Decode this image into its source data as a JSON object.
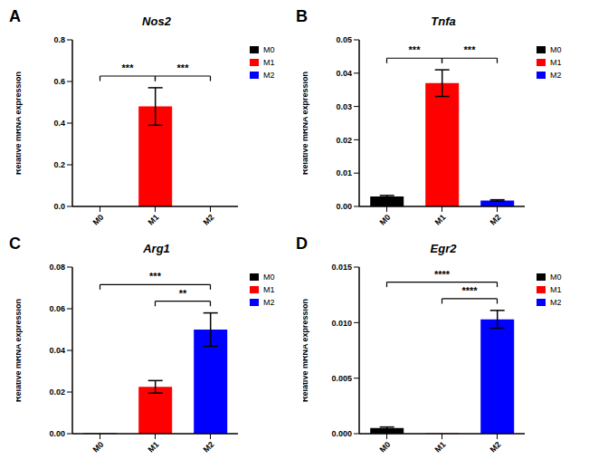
{
  "chart_data": [
    {
      "type": "bar",
      "panel": "A",
      "title": "Nos2",
      "categories": [
        "M0",
        "M1",
        "M2"
      ],
      "values": [
        0,
        0.48,
        0
      ],
      "errors": [
        0,
        0.09,
        0
      ],
      "colors": [
        "#000000",
        "#ff0000",
        "#0000ff"
      ],
      "ylabel": "Relative mRNA expression",
      "ylim": [
        0,
        0.8
      ],
      "yticks": [
        {
          "value": 0,
          "label": "0.0"
        },
        {
          "value": 0.2,
          "label": "0.2"
        },
        {
          "value": 0.4,
          "label": "0.4"
        },
        {
          "value": 0.6,
          "label": "0.6"
        },
        {
          "value": 0.8,
          "label": "0.8"
        }
      ],
      "legend": "right",
      "annotations": [
        {
          "pair": [
            "M0",
            "M1"
          ],
          "label": "***"
        },
        {
          "pair": [
            "M1",
            "M2"
          ],
          "label": "***"
        }
      ]
    },
    {
      "type": "bar",
      "panel": "B",
      "title": "Tnfa",
      "categories": [
        "M0",
        "M1",
        "M2"
      ],
      "values": [
        0.003,
        0.037,
        0.0018
      ],
      "errors": [
        0.0003,
        0.004,
        0.0002
      ],
      "colors": [
        "#000000",
        "#ff0000",
        "#0000ff"
      ],
      "ylabel": "Relative mRNA expression",
      "ylim": [
        0,
        0.05
      ],
      "yticks": [
        {
          "value": 0,
          "label": "0.00"
        },
        {
          "value": 0.01,
          "label": "0.01"
        },
        {
          "value": 0.02,
          "label": "0.02"
        },
        {
          "value": 0.03,
          "label": "0.03"
        },
        {
          "value": 0.04,
          "label": "0.04"
        },
        {
          "value": 0.05,
          "label": "0.05"
        }
      ],
      "legend": "right",
      "annotations": [
        {
          "pair": [
            "M0",
            "M1"
          ],
          "label": "***"
        },
        {
          "pair": [
            "M1",
            "M2"
          ],
          "label": "***"
        }
      ]
    },
    {
      "type": "bar",
      "panel": "C",
      "title": "Arg1",
      "categories": [
        "M0",
        "M1",
        "M2"
      ],
      "values": [
        0.0002,
        0.0225,
        0.05
      ],
      "errors": [
        0,
        0.003,
        0.008
      ],
      "colors": [
        "#000000",
        "#ff0000",
        "#0000ff"
      ],
      "ylabel": "Relative mRNA expression",
      "ylim": [
        0,
        0.08
      ],
      "yticks": [
        {
          "value": 0,
          "label": "0.00"
        },
        {
          "value": 0.02,
          "label": "0.02"
        },
        {
          "value": 0.04,
          "label": "0.04"
        },
        {
          "value": 0.06,
          "label": "0.06"
        },
        {
          "value": 0.08,
          "label": "0.08"
        }
      ],
      "legend": "right",
      "annotations": [
        {
          "pair": [
            "M1",
            "M2"
          ],
          "label": "**"
        },
        {
          "pair": [
            "M0",
            "M2"
          ],
          "label": "***"
        }
      ]
    },
    {
      "type": "bar",
      "panel": "D",
      "title": "Egr2",
      "categories": [
        "M0",
        "M1",
        "M2"
      ],
      "values": [
        0.0005,
        5e-05,
        0.0103
      ],
      "errors": [
        0.0001,
        0,
        0.0008
      ],
      "colors": [
        "#000000",
        "#ff0000",
        "#0000ff"
      ],
      "ylabel": "Relative mRNA expression",
      "ylim": [
        0,
        0.015
      ],
      "yticks": [
        {
          "value": 0,
          "label": "0.000"
        },
        {
          "value": 0.005,
          "label": "0.005"
        },
        {
          "value": 0.01,
          "label": "0.010"
        },
        {
          "value": 0.015,
          "label": "0.015"
        }
      ],
      "legend": "right",
      "annotations": [
        {
          "pair": [
            "M1",
            "M2"
          ],
          "label": "****"
        },
        {
          "pair": [
            "M0",
            "M2"
          ],
          "label": "****"
        }
      ]
    }
  ]
}
